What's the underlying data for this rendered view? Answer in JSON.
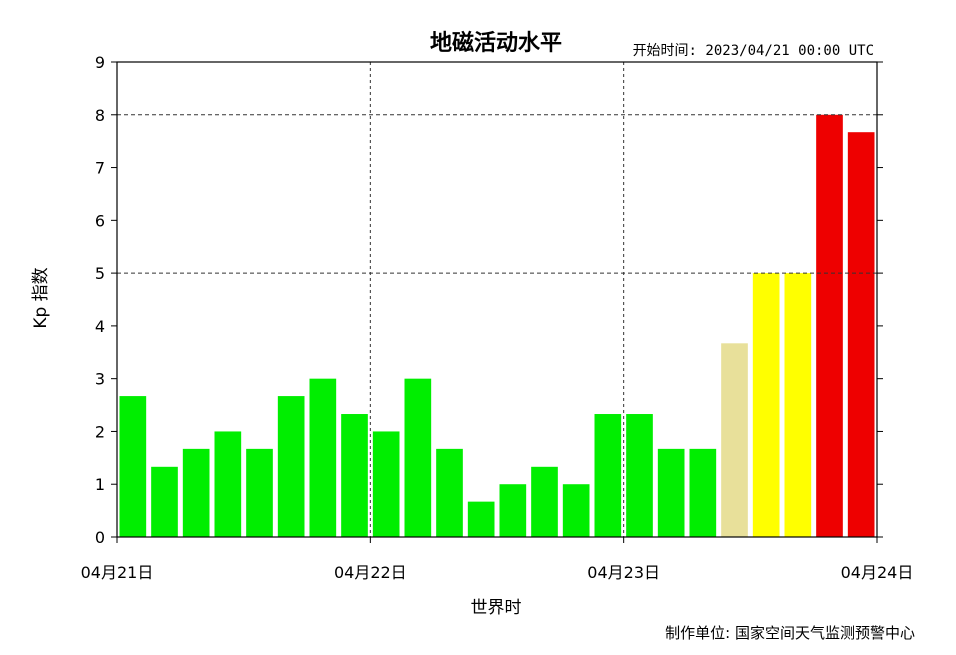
{
  "chart_data": {
    "type": "bar",
    "title": "地磁活动水平",
    "start_time": "开始时间: 2023/04/21 00:00 UTC",
    "xlabel": "世界时",
    "ylabel": "Kp 指数",
    "credit": "制作单位: 国家空间天气监测预警中心",
    "ylim": [
      0,
      9
    ],
    "yticks": [
      0,
      1,
      2,
      3,
      4,
      5,
      6,
      7,
      8,
      9
    ],
    "xtick_labels": [
      "04月21日",
      "04月22日",
      "04月23日",
      "04月24日"
    ],
    "values": [
      2.67,
      1.33,
      1.67,
      2.0,
      1.67,
      2.67,
      3.0,
      2.33,
      2.0,
      3.0,
      1.67,
      0.67,
      1.0,
      1.33,
      1.0,
      2.33,
      2.33,
      1.67,
      1.67,
      3.67,
      5.0,
      5.0,
      8.0,
      7.67
    ],
    "colors": [
      "#00ee00",
      "#00ee00",
      "#00ee00",
      "#00ee00",
      "#00ee00",
      "#00ee00",
      "#00ee00",
      "#00ee00",
      "#00ee00",
      "#00ee00",
      "#00ee00",
      "#00ee00",
      "#00ee00",
      "#00ee00",
      "#00ee00",
      "#00ee00",
      "#00ee00",
      "#00ee00",
      "#00ee00",
      "#e8e09a",
      "#ffff00",
      "#ffff00",
      "#ee0000",
      "#ee0000"
    ],
    "dashed_reference_lines": [
      5,
      8
    ],
    "day_separators": [
      1,
      2
    ],
    "grid": false,
    "legend": "none"
  }
}
